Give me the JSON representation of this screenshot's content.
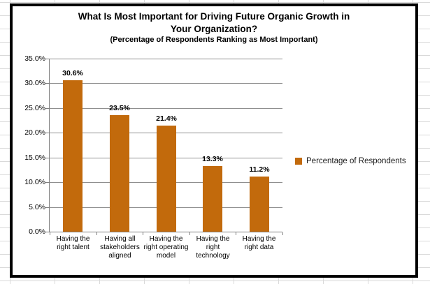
{
  "chart": {
    "title": "What Is Most Important for Driving Future Organic Growth in\nYour Organization?",
    "subtitle": "(Percentage of Respondents Ranking as Most Important)",
    "legend": {
      "label": "Percentage of Respondents"
    }
  },
  "chart_data": {
    "type": "bar",
    "title": "What Is Most Important for Driving Future Organic Growth in Your Organization?",
    "subtitle": "(Percentage of Respondents Ranking as Most Important)",
    "categories": [
      "Having the right talent",
      "Having all stakeholders aligned",
      "Having the right operating model",
      "Having the right technology",
      "Having the right data"
    ],
    "series": [
      {
        "name": "Percentage of Respondents",
        "values": [
          30.6,
          23.5,
          21.4,
          13.3,
          11.2
        ]
      }
    ],
    "value_labels": [
      "30.6%",
      "23.5%",
      "21.4%",
      "13.3%",
      "11.2%"
    ],
    "xlabel": "",
    "ylabel": "",
    "ylim": [
      0,
      35
    ],
    "ytick_step": 5,
    "ytick_labels": [
      "35.0%",
      "30.0%",
      "25.0%",
      "20.0%",
      "15.0%",
      "10.0%",
      "5.0%",
      "0.0%"
    ],
    "grid": true,
    "legend_position": "right",
    "colors": {
      "bar": "#C26A0C",
      "gridline": "#8f8f8f",
      "axis": "#7f7f7f",
      "spreadsheet_gridline": "#d9d9d9",
      "chart_border": "#000000"
    }
  }
}
